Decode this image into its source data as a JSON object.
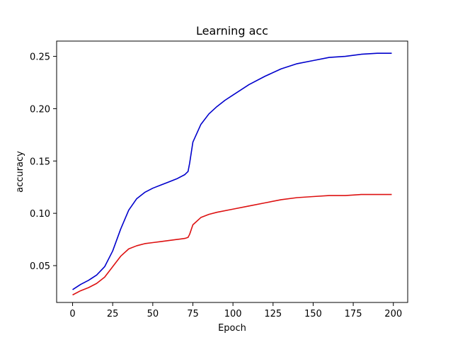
{
  "chart_data": {
    "type": "line",
    "title": "Learning acc",
    "xlabel": "Epoch",
    "ylabel": "accuracy",
    "xlim": [
      -9.95,
      208.95
    ],
    "ylim": [
      0.0148,
      0.2646
    ],
    "xticks": [
      0,
      25,
      50,
      75,
      100,
      125,
      150,
      175,
      200
    ],
    "yticks": [
      0.05,
      0.1,
      0.15,
      0.2,
      0.25
    ],
    "ytick_labels": [
      "0.05",
      "0.10",
      "0.15",
      "0.20",
      "0.25"
    ],
    "grid": false,
    "legend": false,
    "series": [
      {
        "color": "#0000cc",
        "x": [
          0,
          5,
          10,
          15,
          20,
          25,
          30,
          35,
          40,
          45,
          50,
          55,
          60,
          65,
          70,
          72,
          73,
          75,
          80,
          85,
          90,
          95,
          100,
          110,
          120,
          130,
          140,
          150,
          160,
          170,
          180,
          190,
          199
        ],
        "y": [
          0.027,
          0.032,
          0.036,
          0.041,
          0.049,
          0.064,
          0.085,
          0.103,
          0.114,
          0.12,
          0.124,
          0.127,
          0.13,
          0.133,
          0.137,
          0.14,
          0.148,
          0.168,
          0.185,
          0.195,
          0.202,
          0.208,
          0.213,
          0.223,
          0.231,
          0.238,
          0.243,
          0.246,
          0.249,
          0.25,
          0.252,
          0.253,
          0.253
        ]
      },
      {
        "color": "#dd1111",
        "x": [
          0,
          5,
          10,
          15,
          20,
          25,
          30,
          35,
          40,
          45,
          50,
          55,
          60,
          65,
          70,
          72,
          73,
          75,
          80,
          85,
          90,
          100,
          110,
          120,
          130,
          140,
          150,
          160,
          170,
          180,
          190,
          199
        ],
        "y": [
          0.022,
          0.026,
          0.029,
          0.033,
          0.039,
          0.049,
          0.059,
          0.066,
          0.069,
          0.071,
          0.072,
          0.073,
          0.074,
          0.075,
          0.076,
          0.077,
          0.08,
          0.089,
          0.096,
          0.099,
          0.101,
          0.104,
          0.107,
          0.11,
          0.113,
          0.115,
          0.116,
          0.117,
          0.117,
          0.118,
          0.118,
          0.118
        ]
      }
    ]
  }
}
